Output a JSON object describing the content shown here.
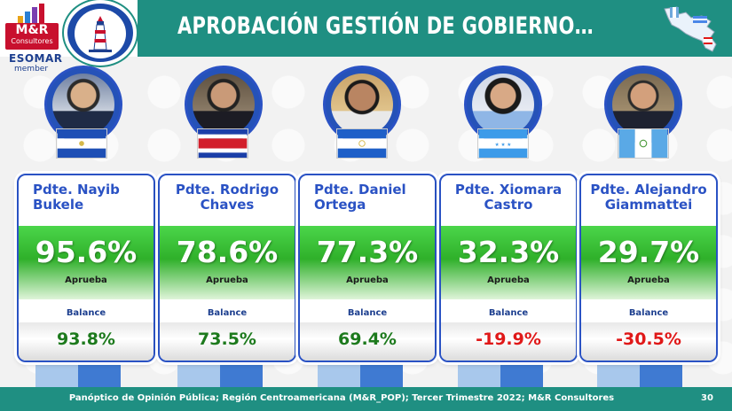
{
  "header": {
    "title": "APROBACIÓN GESTIÓN DE GOBIERNO…",
    "logo_main": "M&R",
    "logo_sub": "Consultores",
    "esomar": "ESOMAR",
    "member": "member",
    "medal_icon": "lighthouse-medal-icon",
    "map_icon": "central-america-map-icon"
  },
  "presidents": [
    {
      "name": "Pdte. Nayib Bukele",
      "approval": "95.6%",
      "approval_label": "Aprueba",
      "balance_label": "Balance",
      "balance": "93.8%",
      "balance_color": "#1d7a1d",
      "flag": "el-salvador-flag-icon"
    },
    {
      "name": "Pdte. Rodrigo Chaves",
      "approval": "78.6%",
      "approval_label": "Aprueba",
      "balance_label": "Balance",
      "balance": "73.5%",
      "balance_color": "#1d7a1d",
      "flag": "costa-rica-flag-icon"
    },
    {
      "name": "Pdte. Daniel Ortega",
      "approval": "77.3%",
      "approval_label": "Aprueba",
      "balance_label": "Balance",
      "balance": "69.4%",
      "balance_color": "#1d7a1d",
      "flag": "nicaragua-flag-icon"
    },
    {
      "name": "Pdte. Xiomara Castro",
      "approval": "32.3%",
      "approval_label": "Aprueba",
      "balance_label": "Balance",
      "balance": "-19.9%",
      "balance_color": "#e01818",
      "flag": "honduras-flag-icon"
    },
    {
      "name": "Pdte. Alejandro Giammattei",
      "approval": "29.7%",
      "approval_label": "Aprueba",
      "balance_label": "Balance",
      "balance": "-30.5%",
      "balance_color": "#e01818",
      "flag": "guatemala-flag-icon"
    }
  ],
  "footer": {
    "text": "Panóptico de Opinión Pública; Región Centroamericana (M&R_POP); Tercer Trimestre 2022; M&R Consultores",
    "page": "30"
  },
  "colors": {
    "header": "#1f8f82",
    "card_border": "#2a52c4",
    "positive": "#1d7a1d",
    "negative": "#e01818"
  }
}
